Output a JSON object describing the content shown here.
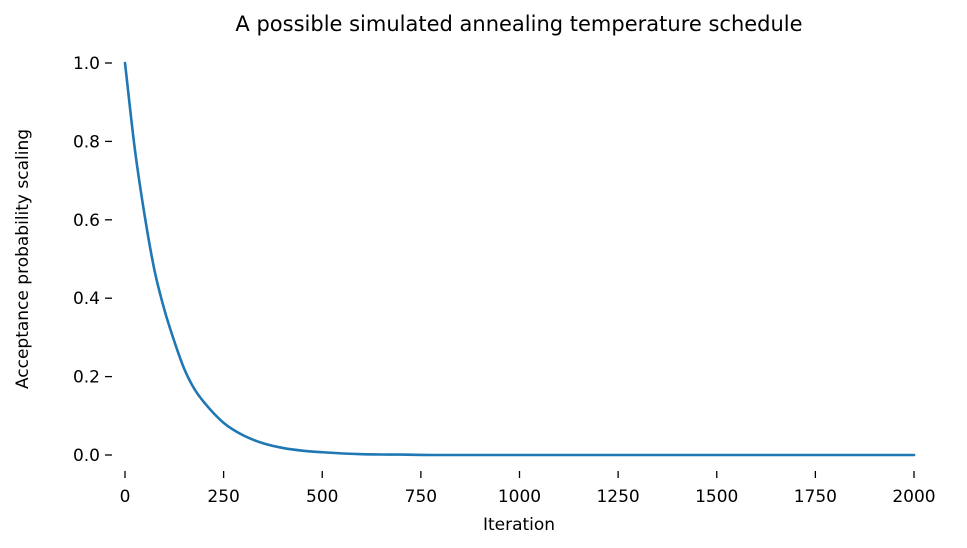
{
  "chart_data": {
    "type": "line",
    "title": "A possible simulated annealing temperature schedule",
    "xlabel": "Iteration",
    "ylabel": "Acceptance probability scaling",
    "xlim": [
      0,
      2000
    ],
    "ylim": [
      0.0,
      1.0
    ],
    "x_ticks": [
      "0",
      "250",
      "500",
      "750",
      "1000",
      "1250",
      "1500",
      "1750",
      "2000"
    ],
    "y_ticks": [
      "0.0",
      "0.2",
      "0.4",
      "0.6",
      "0.8",
      "1.0"
    ],
    "grid": false,
    "line_color": "#1f77b4",
    "series": [
      {
        "x": [
          0,
          25,
          50,
          75,
          100,
          125,
          150,
          175,
          200,
          250,
          300,
          350,
          400,
          450,
          500,
          600,
          700,
          800,
          1000,
          1250,
          1500,
          1750,
          2000
        ],
        "y": [
          1.0,
          0.78,
          0.61,
          0.47,
          0.37,
          0.29,
          0.22,
          0.17,
          0.135,
          0.082,
          0.05,
          0.03,
          0.018,
          0.011,
          0.007,
          0.002,
          0.001,
          0.0,
          0.0,
          0.0,
          0.0,
          0.0,
          0.0
        ]
      }
    ]
  }
}
